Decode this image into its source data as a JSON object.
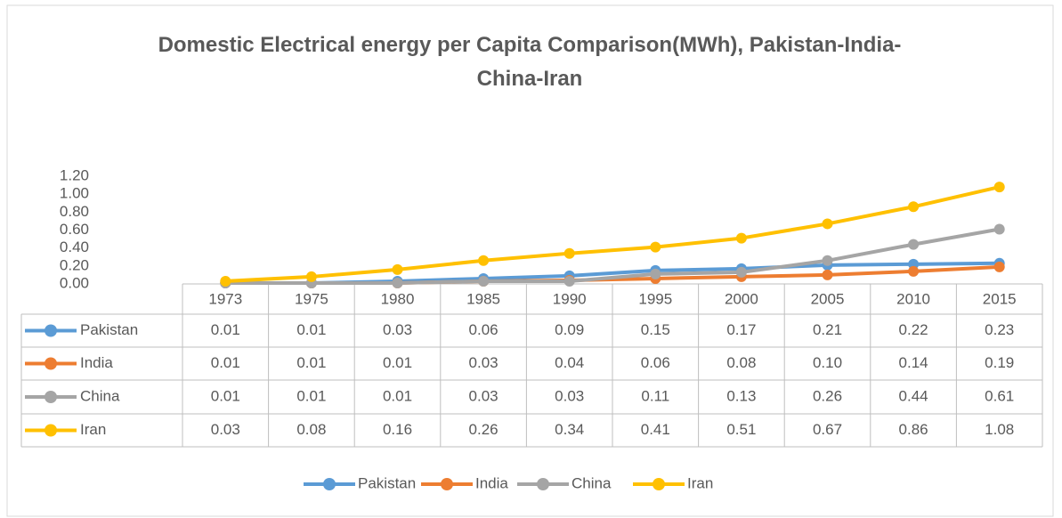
{
  "chart_data": {
    "type": "line",
    "title": "Domestic Electrical energy per Capita Comparison(MWh), Pakistan-India-China-Iran",
    "categories": [
      "1973",
      "1975",
      "1980",
      "1985",
      "1990",
      "1995",
      "2000",
      "2005",
      "2010",
      "2015"
    ],
    "series": [
      {
        "name": "Pakistan",
        "color": "#5b9bd5",
        "values": [
          0.01,
          0.01,
          0.03,
          0.06,
          0.09,
          0.15,
          0.17,
          0.21,
          0.22,
          0.23
        ],
        "value_labels": [
          "0.01",
          "0.01",
          "0.03",
          "0.06",
          "0.09",
          "0.15",
          "0.17",
          "0.21",
          "0.22",
          "0.23"
        ]
      },
      {
        "name": "India",
        "color": "#ed7d31",
        "values": [
          0.01,
          0.01,
          0.01,
          0.03,
          0.04,
          0.06,
          0.08,
          0.1,
          0.14,
          0.19
        ],
        "value_labels": [
          "0.01",
          "0.01",
          "0.01",
          "0.03",
          "0.04",
          "0.06",
          "0.08",
          "0.10",
          "0.14",
          "0.19"
        ]
      },
      {
        "name": "China",
        "color": "#a5a5a5",
        "values": [
          0.01,
          0.01,
          0.01,
          0.03,
          0.03,
          0.11,
          0.13,
          0.26,
          0.44,
          0.61
        ],
        "value_labels": [
          "0.01",
          "0.01",
          "0.01",
          "0.03",
          "0.03",
          "0.11",
          "0.13",
          "0.26",
          "0.44",
          "0.61"
        ]
      },
      {
        "name": "Iran",
        "color": "#ffc000",
        "values": [
          0.03,
          0.08,
          0.16,
          0.26,
          0.34,
          0.41,
          0.51,
          0.67,
          0.86,
          1.08
        ],
        "value_labels": [
          "0.03",
          "0.08",
          "0.16",
          "0.26",
          "0.34",
          "0.41",
          "0.51",
          "0.67",
          "0.86",
          "1.08"
        ]
      }
    ],
    "ylim": [
      0,
      1.2
    ],
    "yticks": [
      {
        "value": 0,
        "label": "0.00"
      },
      {
        "value": 0.2,
        "label": "0.20"
      },
      {
        "value": 0.4,
        "label": "0.40"
      },
      {
        "value": 0.6,
        "label": "0.60"
      },
      {
        "value": 0.8,
        "label": "0.80"
      },
      {
        "value": 1,
        "label": "1.00"
      },
      {
        "value": 1.2,
        "label": "1.20"
      }
    ],
    "grid": false,
    "legend": "bottom"
  }
}
